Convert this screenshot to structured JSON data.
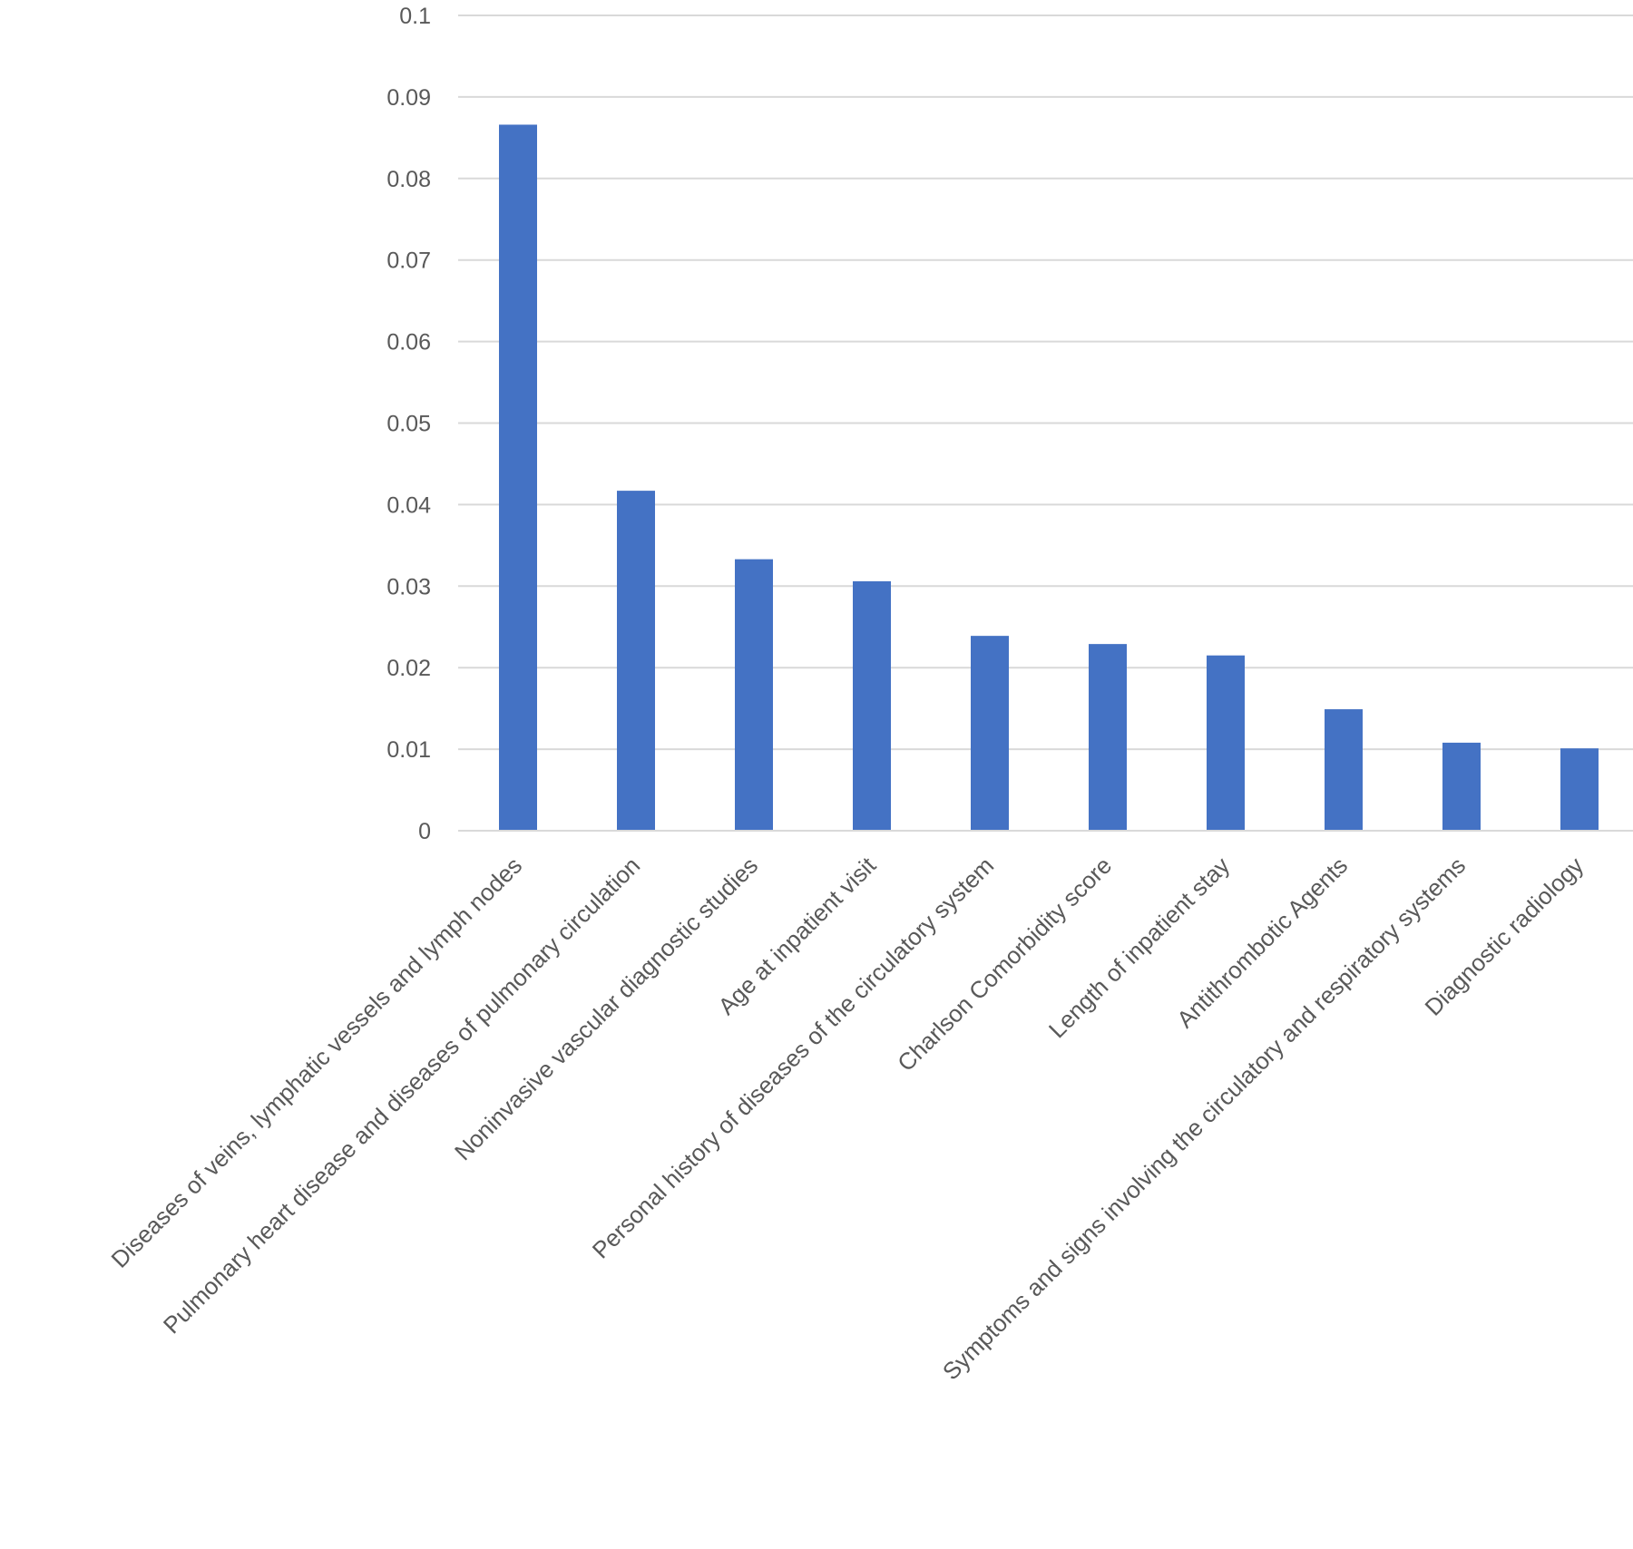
{
  "chart_data": {
    "type": "bar",
    "title": "",
    "xlabel": "",
    "ylabel": "",
    "ylim": [
      0,
      0.1
    ],
    "yticks": [
      "0",
      "0.01",
      "0.02",
      "0.03",
      "0.04",
      "0.05",
      "0.06",
      "0.07",
      "0.08",
      "0.09",
      "0.1"
    ],
    "grid": true,
    "legend": "none",
    "bar_color": "#4472c4",
    "categories": [
      "Diseases of veins, lymphatic vessels and lymph nodes",
      "Pulmonary heart disease and diseases of pulmonary circulation",
      "Noninvasive vascular diagnostic studies",
      "Age at inpatient visit",
      "Personal history of diseases of the circulatory system",
      "Charlson Comorbidity score",
      "Length of inpatient stay",
      "Antithrombotic Agents",
      "Symptoms and signs involving the circulatory and respiratory systems",
      "Diagnostic radiology"
    ],
    "values": [
      0.0866,
      0.0417,
      0.0333,
      0.0306,
      0.0239,
      0.0229,
      0.0215,
      0.0149,
      0.0108,
      0.0101
    ]
  }
}
